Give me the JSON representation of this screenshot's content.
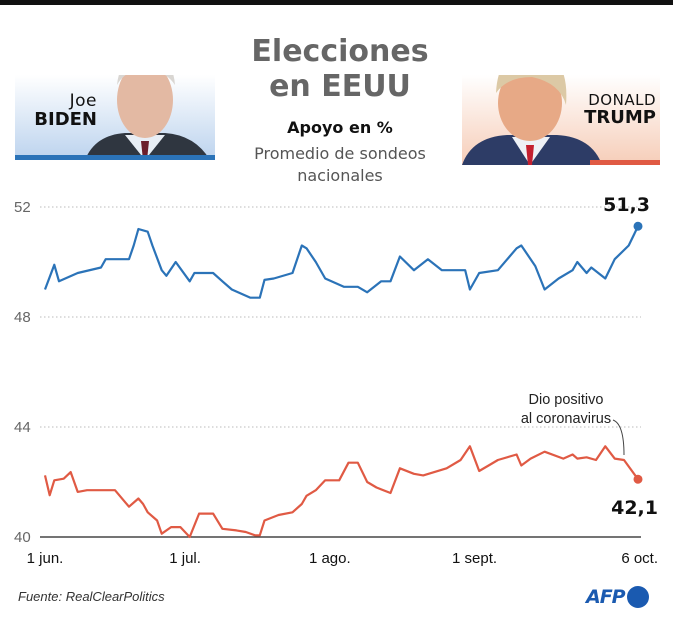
{
  "header": {
    "title_line1": "Elecciones",
    "title_line2": "en EEUU",
    "subtitle": "Apoyo en %",
    "description_line1": "Promedio de sondeos",
    "description_line2": "nacionales"
  },
  "candidates": [
    {
      "first": "Joe",
      "last": "Biden",
      "color": "#2b73b8"
    },
    {
      "first": "Donald",
      "last": "Trump",
      "color": "#e05a44"
    }
  ],
  "footer": {
    "source": "Fuente: RealClearPolitics",
    "logo": "AFP"
  },
  "chart_data": {
    "type": "line",
    "title": "Elecciones en EEUU - Apoyo en % (Promedio de sondeos nacionales)",
    "xlabel": "",
    "ylabel": "%",
    "x_unit": "days since 1 jun.",
    "xlim": [
      0,
      127
    ],
    "ylim": [
      40,
      52
    ],
    "yticks": [
      40,
      44,
      48,
      52
    ],
    "ytick_labels": [
      "40",
      "44",
      "48",
      "52"
    ],
    "xticks": [
      0,
      30,
      61,
      92,
      127
    ],
    "xtick_labels": [
      "1 jun.",
      "1 jul.",
      "1 ago.",
      "1 sept.",
      "6 oct."
    ],
    "grid": true,
    "series": [
      {
        "name": "Biden",
        "color": "#2b73b8",
        "end_label": "51,3",
        "x": [
          0,
          2,
          3,
          7,
          12,
          13,
          18,
          19,
          20,
          22,
          23,
          25,
          26,
          28,
          31,
          32,
          36,
          38,
          40,
          44,
          46,
          47,
          49,
          53,
          55,
          56,
          58,
          60,
          64,
          67,
          69,
          72,
          74,
          76,
          79,
          82,
          85,
          90,
          91,
          93,
          97,
          101,
          102,
          105,
          107,
          110,
          113,
          114,
          116,
          117,
          120,
          122,
          125,
          127
        ],
        "values": [
          49.0,
          49.9,
          49.3,
          49.6,
          49.8,
          50.1,
          50.1,
          50.6,
          51.2,
          51.1,
          50.6,
          49.7,
          49.5,
          50.0,
          49.3,
          49.6,
          49.6,
          49.3,
          49.0,
          48.7,
          48.7,
          49.35,
          49.4,
          49.6,
          50.6,
          50.5,
          50.0,
          49.4,
          49.1,
          49.1,
          48.9,
          49.3,
          49.3,
          50.2,
          49.7,
          50.1,
          49.7,
          49.7,
          49.0,
          49.6,
          49.7,
          50.5,
          50.6,
          49.85,
          49.0,
          49.4,
          49.7,
          50.0,
          49.6,
          49.8,
          49.4,
          50.1,
          50.6,
          51.3
        ]
      },
      {
        "name": "Trump",
        "color": "#e05a44",
        "end_label": "42,1",
        "x": [
          0,
          1,
          2,
          4,
          5.5,
          7,
          9,
          15,
          18,
          20,
          21,
          22,
          24,
          25,
          27,
          29,
          31,
          33,
          36,
          38,
          41,
          43,
          45,
          46,
          47,
          50,
          53,
          55,
          56,
          58,
          60,
          63,
          65,
          67,
          69,
          71,
          74,
          76,
          79,
          81,
          86,
          89,
          91,
          93,
          95,
          97,
          101,
          102,
          104,
          107,
          111,
          113,
          114,
          116,
          118,
          120,
          122,
          124,
          127
        ],
        "values": [
          42.24,
          41.52,
          42.06,
          42.12,
          42.36,
          41.64,
          41.7,
          41.7,
          41.1,
          41.4,
          41.2,
          40.9,
          40.6,
          40.12,
          40.36,
          40.36,
          40.0,
          40.85,
          40.85,
          40.3,
          40.24,
          40.18,
          40.06,
          40.06,
          40.6,
          40.8,
          40.9,
          41.2,
          41.5,
          41.7,
          42.06,
          42.06,
          42.7,
          42.7,
          42.0,
          41.8,
          41.6,
          42.5,
          42.3,
          42.24,
          42.5,
          42.8,
          43.3,
          42.4,
          42.6,
          42.8,
          43.0,
          42.6,
          42.85,
          43.1,
          42.85,
          43.0,
          42.85,
          42.9,
          42.8,
          43.3,
          42.85,
          42.8,
          42.1
        ]
      }
    ],
    "annotations": [
      {
        "series": "Trump",
        "text_line1": "Dio positivo",
        "text_line2": "al coronavirus"
      }
    ]
  }
}
